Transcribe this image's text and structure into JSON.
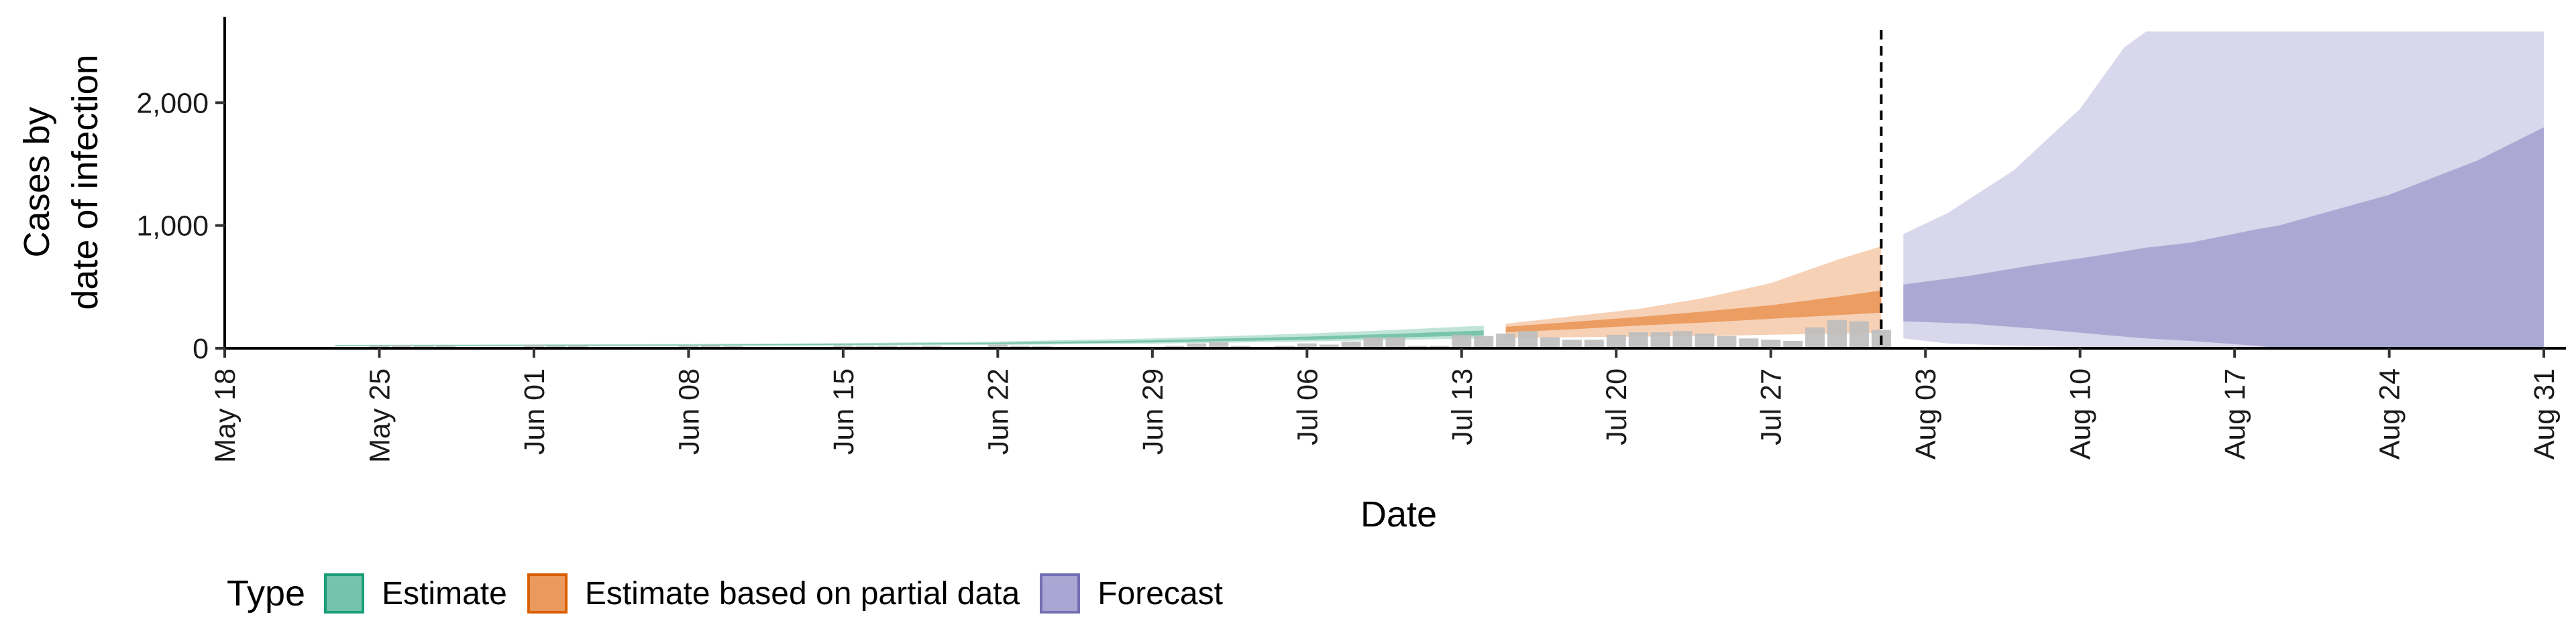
{
  "chart_data": {
    "type": "area",
    "xlabel": "Date",
    "ylabel": [
      "Cases by",
      "date of infection"
    ],
    "ylim": [
      0,
      2700
    ],
    "x_range": [
      "2020-05-18",
      "2020-09-01"
    ],
    "yticks": [
      0,
      1000,
      2000
    ],
    "ytick_labels": [
      "0",
      "1,000",
      "2,000"
    ],
    "xticks": [
      "2020-05-18",
      "2020-05-25",
      "2020-06-01",
      "2020-06-08",
      "2020-06-15",
      "2020-06-22",
      "2020-06-29",
      "2020-07-06",
      "2020-07-13",
      "2020-07-20",
      "2020-07-27",
      "2020-08-03",
      "2020-08-10",
      "2020-08-17",
      "2020-08-24",
      "2020-08-31"
    ],
    "xtick_labels": [
      "May 18",
      "May 25",
      "Jun 01",
      "Jun 08",
      "Jun 15",
      "Jun 22",
      "Jun 29",
      "Jul 06",
      "Jul 13",
      "Jul 20",
      "Jul 27",
      "Aug 03",
      "Aug 10",
      "Aug 17",
      "Aug 24",
      "Aug 31"
    ],
    "vline": "2020-08-01",
    "grid": false,
    "legend": {
      "title": "Type",
      "position": "bottom",
      "entries": [
        {
          "label": "Estimate",
          "fill": "#75c3aa",
          "stroke": "#1b9e77"
        },
        {
          "label": "Estimate based on partial data",
          "fill": "#eb9a5e",
          "stroke": "#d95f02"
        },
        {
          "label": "Forecast",
          "fill": "#a9a6d3",
          "stroke": "#7570b3"
        }
      ]
    },
    "reported_cases": {
      "color": "#bdbdbd",
      "values": [
        [
          "2020-05-25",
          20
        ],
        [
          "2020-05-26",
          25
        ],
        [
          "2020-05-27",
          18
        ],
        [
          "2020-05-28",
          22
        ],
        [
          "2020-06-01",
          28
        ],
        [
          "2020-06-02",
          20
        ],
        [
          "2020-06-03",
          24
        ],
        [
          "2020-06-08",
          20
        ],
        [
          "2020-06-09",
          24
        ],
        [
          "2020-06-10",
          18
        ],
        [
          "2020-06-15",
          22
        ],
        [
          "2020-06-16",
          18
        ],
        [
          "2020-06-17",
          20
        ],
        [
          "2020-06-18",
          15
        ],
        [
          "2020-06-19",
          20
        ],
        [
          "2020-06-22",
          30
        ],
        [
          "2020-06-23",
          20
        ],
        [
          "2020-06-24",
          18
        ],
        [
          "2020-06-30",
          20
        ],
        [
          "2020-07-01",
          40
        ],
        [
          "2020-07-02",
          50
        ],
        [
          "2020-07-03",
          20
        ],
        [
          "2020-07-05",
          20
        ],
        [
          "2020-07-06",
          40
        ],
        [
          "2020-07-07",
          30
        ],
        [
          "2020-07-08",
          55
        ],
        [
          "2020-07-09",
          90
        ],
        [
          "2020-07-10",
          90
        ],
        [
          "2020-07-11",
          20
        ],
        [
          "2020-07-12",
          20
        ],
        [
          "2020-07-13",
          110
        ],
        [
          "2020-07-14",
          100
        ],
        [
          "2020-07-15",
          120
        ],
        [
          "2020-07-16",
          140
        ],
        [
          "2020-07-17",
          90
        ],
        [
          "2020-07-18",
          70
        ],
        [
          "2020-07-19",
          70
        ],
        [
          "2020-07-20",
          110
        ],
        [
          "2020-07-21",
          130
        ],
        [
          "2020-07-22",
          130
        ],
        [
          "2020-07-23",
          140
        ],
        [
          "2020-07-24",
          120
        ],
        [
          "2020-07-25",
          100
        ],
        [
          "2020-07-26",
          80
        ],
        [
          "2020-07-27",
          70
        ],
        [
          "2020-07-28",
          60
        ],
        [
          "2020-07-29",
          170
        ],
        [
          "2020-07-30",
          230
        ],
        [
          "2020-07-31",
          220
        ],
        [
          "2020-08-01",
          150
        ]
      ]
    },
    "series": [
      {
        "name": "Estimate",
        "fill": "#75c3aa",
        "stroke": "#1b9e77",
        "outer": [
          [
            "2020-05-23",
            15,
            28
          ],
          [
            "2020-06-01",
            18,
            32
          ],
          [
            "2020-06-08",
            18,
            35
          ],
          [
            "2020-06-15",
            22,
            42
          ],
          [
            "2020-06-22",
            28,
            55
          ],
          [
            "2020-06-29",
            38,
            80
          ],
          [
            "2020-07-06",
            55,
            120
          ],
          [
            "2020-07-10",
            68,
            150
          ],
          [
            "2020-07-14",
            80,
            185
          ]
        ],
        "inner": [
          [
            "2020-05-23",
            18,
            25
          ],
          [
            "2020-06-01",
            22,
            28
          ],
          [
            "2020-06-08",
            23,
            30
          ],
          [
            "2020-06-15",
            28,
            36
          ],
          [
            "2020-06-22",
            35,
            46
          ],
          [
            "2020-06-29",
            48,
            65
          ],
          [
            "2020-07-06",
            70,
            95
          ],
          [
            "2020-07-10",
            88,
            118
          ],
          [
            "2020-07-14",
            105,
            145
          ]
        ]
      },
      {
        "name": "Estimate based on partial data",
        "fill": "#eb9a5e",
        "stroke": "#d95f02",
        "outer": [
          [
            "2020-07-15",
            85,
            200
          ],
          [
            "2020-07-18",
            90,
            260
          ],
          [
            "2020-07-21",
            95,
            320
          ],
          [
            "2020-07-24",
            100,
            410
          ],
          [
            "2020-07-27",
            110,
            530
          ],
          [
            "2020-07-30",
            120,
            720
          ],
          [
            "2020-08-01",
            125,
            830
          ]
        ],
        "inner": [
          [
            "2020-07-15",
            130,
            175
          ],
          [
            "2020-07-18",
            155,
            215
          ],
          [
            "2020-07-21",
            185,
            255
          ],
          [
            "2020-07-24",
            210,
            300
          ],
          [
            "2020-07-27",
            240,
            350
          ],
          [
            "2020-07-30",
            270,
            420
          ],
          [
            "2020-08-01",
            290,
            470
          ]
        ]
      },
      {
        "name": "Forecast",
        "fill": "#a9a6d3",
        "stroke": "#7570b3",
        "outer": [
          [
            "2020-08-02",
            80,
            930
          ],
          [
            "2020-08-04",
            40,
            1100
          ],
          [
            "2020-08-07",
            20,
            1450
          ],
          [
            "2020-08-10",
            10,
            1950
          ],
          [
            "2020-08-12",
            5,
            2450
          ],
          [
            "2020-08-13",
            0,
            2580
          ],
          [
            "2020-08-31",
            0,
            2580
          ]
        ],
        "inner": [
          [
            "2020-08-02",
            220,
            520
          ],
          [
            "2020-08-05",
            200,
            590
          ],
          [
            "2020-08-08",
            160,
            680
          ],
          [
            "2020-08-11",
            110,
            760
          ],
          [
            "2020-08-13",
            80,
            820
          ],
          [
            "2020-08-15",
            60,
            860
          ],
          [
            "2020-08-18",
            20,
            970
          ],
          [
            "2020-08-19",
            0,
            1000
          ],
          [
            "2020-08-24",
            0,
            1250
          ],
          [
            "2020-08-28",
            0,
            1530
          ],
          [
            "2020-08-31",
            0,
            1800
          ]
        ]
      }
    ]
  }
}
